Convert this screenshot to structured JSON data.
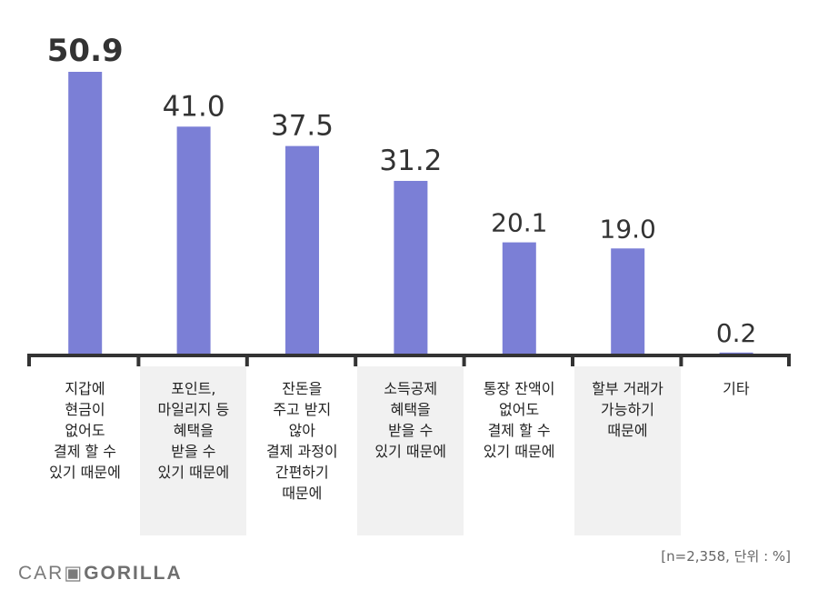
{
  "chart_data": {
    "type": "bar",
    "categories": [
      "지갑에\n현금이\n없어도\n결제 할 수\n있기 때문에",
      "포인트,\n마일리지 등\n혜택을\n받을 수\n있기 때문에",
      "잔돈을\n주고 받지\n않아\n결제 과정이\n간편하기\n때문에",
      "소득공제\n혜택을\n받을 수\n있기 때문에",
      "통장 잔액이\n없어도\n결제 할 수\n있기 때문에",
      "할부 거래가\n가능하기\n때문에",
      "기타"
    ],
    "values": [
      50.9,
      41.0,
      37.5,
      31.2,
      20.1,
      19.0,
      0.2
    ],
    "value_labels": [
      "50.9",
      "41.0",
      "37.5",
      "31.2",
      "20.1",
      "19.0",
      "0.2"
    ],
    "ylim": [
      0,
      56
    ],
    "bar_color": "#7b7fd6",
    "axis_color": "#333333"
  },
  "footer": {
    "note": "[n=2,358, 단위 : %]",
    "logo_left": "CAR",
    "logo_right": "GORILLA"
  }
}
